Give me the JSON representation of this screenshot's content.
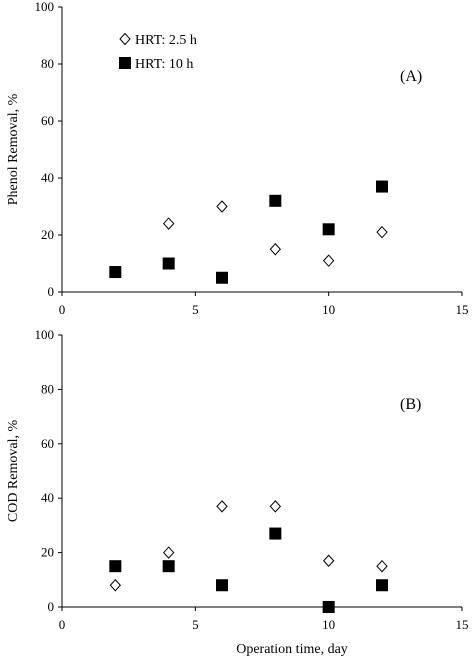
{
  "chart_data": [
    {
      "type": "scatter",
      "panel_label": "(A)",
      "ylabel": "Phenol Removal, %",
      "xlabel": "",
      "xlim": [
        0,
        15
      ],
      "ylim": [
        0,
        100
      ],
      "xticks": [
        0,
        5,
        10,
        15
      ],
      "xtick_labels": [
        "0",
        "5",
        "10",
        "15"
      ],
      "yticks": [
        0,
        20,
        40,
        60,
        80,
        100
      ],
      "ytick_labels": [
        "0",
        "20",
        "40",
        "60",
        "80",
        "100"
      ],
      "grid": false,
      "legend": "top-left",
      "series": [
        {
          "name": "HRT: 2.5 h",
          "marker": "diamond-open",
          "color": "#000000",
          "x": [
            4,
            6,
            8,
            10,
            12
          ],
          "y": [
            24,
            30,
            15,
            11,
            21
          ]
        },
        {
          "name": "HRT: 10 h",
          "marker": "square-filled",
          "color": "#000000",
          "x": [
            2,
            4,
            6,
            8,
            10,
            12
          ],
          "y": [
            7,
            10,
            5,
            32,
            22,
            37
          ]
        }
      ]
    },
    {
      "type": "scatter",
      "panel_label": "(B)",
      "ylabel": "COD Removal, %",
      "xlabel": "Operation time, day",
      "xlim": [
        0,
        15
      ],
      "ylim": [
        0,
        100
      ],
      "xticks": [
        0,
        5,
        10,
        15
      ],
      "xtick_labels": [
        "0",
        "5",
        "10",
        "15"
      ],
      "yticks": [
        0,
        20,
        40,
        60,
        80,
        100
      ],
      "ytick_labels": [
        "0",
        "20",
        "40",
        "60",
        "80",
        "100"
      ],
      "grid": false,
      "legend": "",
      "series": [
        {
          "name": "HRT: 2.5 h",
          "marker": "diamond-open",
          "color": "#000000",
          "x": [
            2,
            4,
            6,
            8,
            10,
            12
          ],
          "y": [
            8,
            20,
            37,
            37,
            17,
            15
          ]
        },
        {
          "name": "HRT: 10 h",
          "marker": "square-filled",
          "color": "#000000",
          "x": [
            2,
            4,
            6,
            8,
            10,
            12
          ],
          "y": [
            15,
            15,
            8,
            27,
            0,
            8
          ]
        }
      ]
    }
  ]
}
